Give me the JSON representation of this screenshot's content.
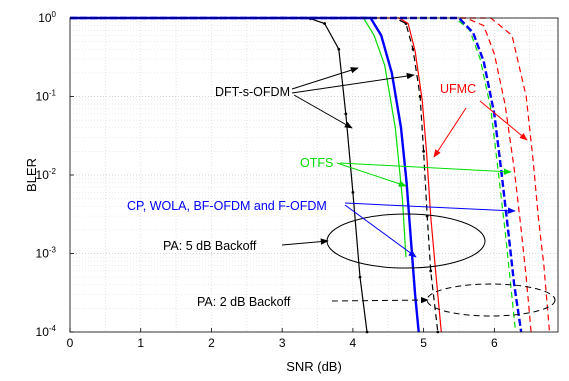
{
  "chart_data": {
    "type": "line",
    "title": "",
    "xlabel": "SNR (dB)",
    "ylabel": "BLER",
    "xlim": [
      0,
      6.9
    ],
    "ylim": [
      0.0001,
      1
    ],
    "y_scale": "log",
    "grid": true,
    "x_ticks": [
      "0",
      "1",
      "2",
      "3",
      "4",
      "5",
      "6"
    ],
    "y_ticks": [
      {
        "base": "10",
        "exp": "0"
      },
      {
        "base": "10",
        "exp": "-1"
      },
      {
        "base": "10",
        "exp": "-2"
      },
      {
        "base": "10",
        "exp": "-3"
      },
      {
        "base": "10",
        "exp": "-4"
      }
    ],
    "series": [
      {
        "color": "#000000",
        "style": "solid",
        "marker": "dot",
        "x": [
          0,
          3.0,
          3.4,
          3.6,
          3.8,
          3.9,
          4.0,
          4.1,
          4.2
        ],
        "y": [
          1,
          1,
          0.98,
          0.85,
          0.4,
          0.06,
          0.006,
          0.0005,
          0.0001
        ]
      },
      {
        "color": "#000000",
        "style": "dashed",
        "marker": "dot",
        "x": [
          0,
          4.6,
          4.75,
          4.85,
          4.95,
          5.0,
          5.05,
          5.1,
          5.2
        ],
        "y": [
          1,
          1,
          0.85,
          0.4,
          0.1,
          0.02,
          0.003,
          0.0006,
          0.0001
        ]
      },
      {
        "color": "#ff0000",
        "style": "solid",
        "marker": "none",
        "x": [
          0,
          4.65,
          4.78,
          4.88,
          4.98,
          5.04,
          5.1,
          5.17,
          5.25
        ],
        "y": [
          1,
          1,
          0.85,
          0.38,
          0.09,
          0.02,
          0.003,
          0.0006,
          0.0001
        ]
      },
      {
        "color": "#00dd00",
        "style": "solid",
        "marker": "none",
        "x": [
          0,
          4.15,
          4.3,
          4.45,
          4.6,
          4.7,
          4.75
        ],
        "y": [
          1,
          1,
          0.6,
          0.25,
          0.04,
          0.005,
          0.0009
        ]
      },
      {
        "color": "#0000ff",
        "style": "solid",
        "marker": "none",
        "x": [
          0,
          4.25,
          4.4,
          4.55,
          4.68,
          4.76,
          4.82,
          4.88,
          4.93
        ],
        "y": [
          1,
          1,
          0.6,
          0.2,
          0.04,
          0.008,
          0.0015,
          0.0003,
          0.0001
        ]
      },
      {
        "color": "#ff0000",
        "style": "dashed",
        "marker": "none",
        "x": [
          0,
          5.6,
          5.85,
          6.0,
          6.15,
          6.28,
          6.38,
          6.45,
          6.52
        ],
        "y": [
          1,
          1,
          0.8,
          0.35,
          0.08,
          0.012,
          0.002,
          0.0005,
          0.0001
        ]
      },
      {
        "color": "#ff0000",
        "style": "dashed",
        "marker": "none",
        "x": [
          0,
          5.95,
          6.25,
          6.45,
          6.55,
          6.62,
          6.7,
          6.78
        ],
        "y": [
          1,
          1,
          0.6,
          0.1,
          0.015,
          0.003,
          0.0007,
          0.0001
        ]
      },
      {
        "color": "#00dd00",
        "style": "dashed",
        "marker": "none",
        "x": [
          0,
          5.45,
          5.65,
          5.8,
          5.95,
          6.05,
          6.15,
          6.22,
          6.3
        ],
        "y": [
          1,
          1,
          0.7,
          0.3,
          0.07,
          0.012,
          0.002,
          0.0005,
          0.0001
        ]
      },
      {
        "color": "#0000ff",
        "style": "dashed",
        "marker": "none",
        "x": [
          0,
          5.5,
          5.7,
          5.85,
          6.0,
          6.1,
          6.2,
          6.28,
          6.38
        ],
        "y": [
          1,
          1,
          0.65,
          0.28,
          0.06,
          0.011,
          0.0018,
          0.0004,
          0.0001
        ]
      }
    ],
    "annotations": [
      {
        "text": "DFT-s-OFDM",
        "color": "#000000"
      },
      {
        "text": "UFMC",
        "color": "#ff0000"
      },
      {
        "text": "OTFS",
        "color": "#00dd00"
      },
      {
        "text": "CP, WOLA, BF-OFDM and F-OFDM",
        "color": "#0000ff"
      },
      {
        "text": "PA: 5 dB Backoff",
        "color": "#000000"
      },
      {
        "text": "PA: 2 dB Backoff",
        "color": "#000000"
      }
    ]
  }
}
